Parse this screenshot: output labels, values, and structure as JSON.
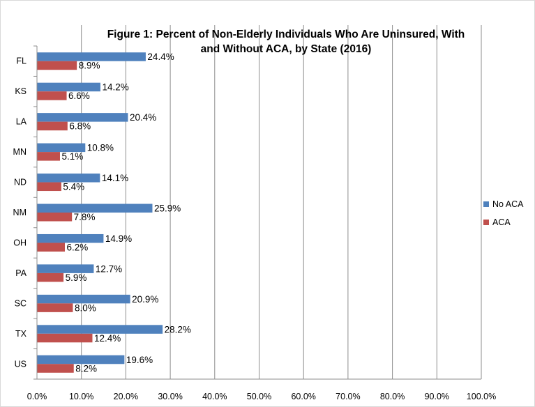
{
  "chart_data": {
    "type": "bar",
    "orientation": "horizontal",
    "title_lines": [
      "Figure 1:  Percent of Non-Elderly Individuals Who Are Uninsured, With",
      "and Without ACA, by State (2016)"
    ],
    "categories": [
      "FL",
      "KS",
      "LA",
      "MN",
      "ND",
      "NM",
      "OH",
      "PA",
      "SC",
      "TX",
      "US"
    ],
    "series": [
      {
        "name": "No ACA",
        "color": "#4F81BD",
        "values": [
          24.4,
          14.2,
          20.4,
          10.8,
          14.1,
          25.9,
          14.9,
          12.7,
          20.9,
          28.2,
          19.6
        ],
        "labels": [
          "24.4%",
          "14.2%",
          "20.4%",
          "10.8%",
          "14.1%",
          "25.9%",
          "14.9%",
          "12.7%",
          "20.9%",
          "28.2%",
          "19.6%"
        ]
      },
      {
        "name": "ACA",
        "color": "#C0504D",
        "values": [
          8.9,
          6.6,
          6.8,
          5.1,
          5.4,
          7.8,
          6.2,
          5.9,
          8.0,
          12.4,
          8.2
        ],
        "labels": [
          "8.9%",
          "6.6%",
          "6.8%",
          "5.1%",
          "5.4%",
          "7.8%",
          "6.2%",
          "5.9%",
          "8.0%",
          "12.4%",
          "8.2%"
        ]
      }
    ],
    "xlim": [
      0,
      100
    ],
    "xticks": [
      0,
      10,
      20,
      30,
      40,
      50,
      60,
      70,
      80,
      90,
      100
    ],
    "xtick_labels": [
      "0.0%",
      "10.0%",
      "20.0%",
      "30.0%",
      "40.0%",
      "50.0%",
      "60.0%",
      "70.0%",
      "80.0%",
      "90.0%",
      "100.0%"
    ],
    "grid": "vertical",
    "legend": "right"
  }
}
